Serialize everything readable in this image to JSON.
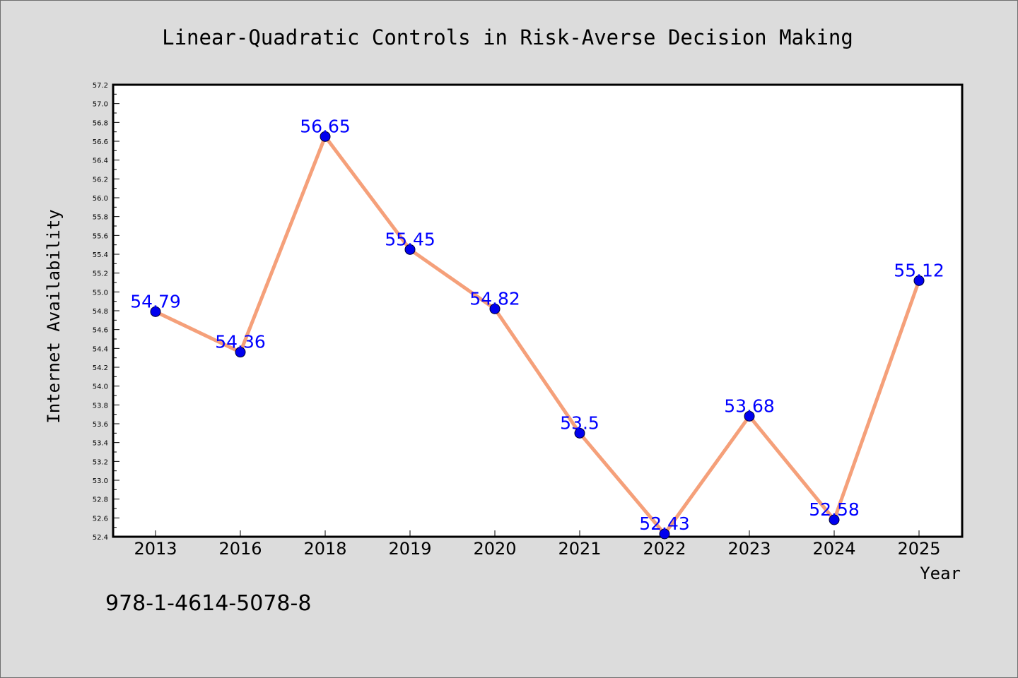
{
  "chart_data": {
    "type": "line",
    "title": "Linear-Quadratic Controls in Risk-Averse Decision Making",
    "xlabel": "Year",
    "ylabel": "Internet Availability",
    "categories": [
      "2013",
      "2016",
      "2018",
      "2019",
      "2020",
      "2021",
      "2022",
      "2023",
      "2024",
      "2025"
    ],
    "series": [
      {
        "values": [
          54.79,
          54.36,
          56.65,
          55.45,
          54.82,
          53.5,
          52.43,
          53.68,
          52.58,
          55.12
        ],
        "data_labels": [
          "54.79",
          "54.36",
          "56.65",
          "55.45",
          "54.82",
          "53.5",
          "52.43",
          "53.68",
          "52.58",
          "55.12"
        ]
      }
    ],
    "ylim": [
      52.4,
      57.2
    ],
    "yticks": [
      "52.4",
      "52.6",
      "52.8",
      "53.0",
      "53.2",
      "53.4",
      "53.6",
      "53.8",
      "54.0",
      "54.2",
      "54.4",
      "54.6",
      "54.8",
      "55.0",
      "55.2",
      "55.4",
      "55.6",
      "55.8",
      "56.0",
      "56.2",
      "56.4",
      "56.6",
      "56.8",
      "57.0",
      "57.2"
    ],
    "grid": false,
    "legend": "none",
    "colors": {
      "line": "#f5a07a",
      "marker": "#0000ee",
      "data_label": "#0000ff",
      "plot_background": "#ffffff",
      "figure_background": "#dcdcdc"
    }
  },
  "footer": {
    "isbn": "978-1-4614-5078-8"
  }
}
